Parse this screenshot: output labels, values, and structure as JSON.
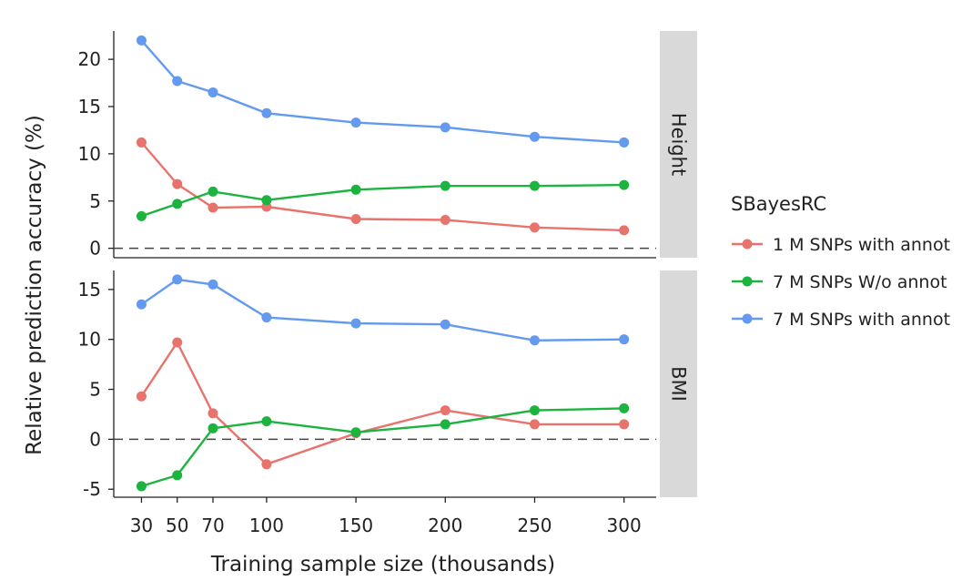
{
  "chart_data": {
    "type": "line",
    "xlabel": "Training sample size (thousands)",
    "ylabel": "Relative prediction accuracy (%)",
    "x": [
      30,
      50,
      70,
      100,
      150,
      200,
      250,
      300
    ],
    "xticks": [
      "30",
      "50",
      "70",
      "100",
      "150",
      "200",
      "250",
      "300"
    ],
    "legend": {
      "title": "SBayesRC",
      "placement": "right"
    },
    "reference_line": {
      "y": 0,
      "style": "dashed"
    },
    "series_styles": [
      {
        "name": "1 M SNPs with annot",
        "color": "#e8736c"
      },
      {
        "name": "7 M SNPs W/o annot",
        "color": "#1db33f"
      },
      {
        "name": "7 M SNPs with annot",
        "color": "#6399ef"
      }
    ],
    "panels": [
      {
        "label": "Height",
        "ylim": [
          -1,
          23
        ],
        "yticks": [
          0,
          5,
          10,
          15,
          20
        ],
        "series": [
          {
            "name": "1 M SNPs with annot",
            "values": [
              11.2,
              6.8,
              4.3,
              4.4,
              3.1,
              3.0,
              2.2,
              1.9
            ]
          },
          {
            "name": "7 M SNPs W/o annot",
            "values": [
              3.4,
              4.7,
              6.0,
              5.1,
              6.2,
              6.6,
              6.6,
              6.7
            ]
          },
          {
            "name": "7 M SNPs with annot",
            "values": [
              22.0,
              17.7,
              16.5,
              14.3,
              13.3,
              12.8,
              11.8,
              11.2
            ]
          }
        ]
      },
      {
        "label": "BMI",
        "ylim": [
          -5.8,
          16.9
        ],
        "yticks": [
          -5,
          0,
          5,
          10,
          15
        ],
        "series": [
          {
            "name": "1 M SNPs with annot",
            "values": [
              4.3,
              9.7,
              2.6,
              -2.5,
              0.6,
              2.9,
              1.5,
              1.5
            ]
          },
          {
            "name": "7 M SNPs W/o annot",
            "values": [
              -4.7,
              -3.6,
              1.1,
              1.8,
              0.7,
              1.5,
              2.9,
              3.1
            ]
          },
          {
            "name": "7 M SNPs with annot",
            "values": [
              13.5,
              16.0,
              15.5,
              12.2,
              11.6,
              11.5,
              9.9,
              10.0
            ]
          }
        ]
      }
    ]
  }
}
